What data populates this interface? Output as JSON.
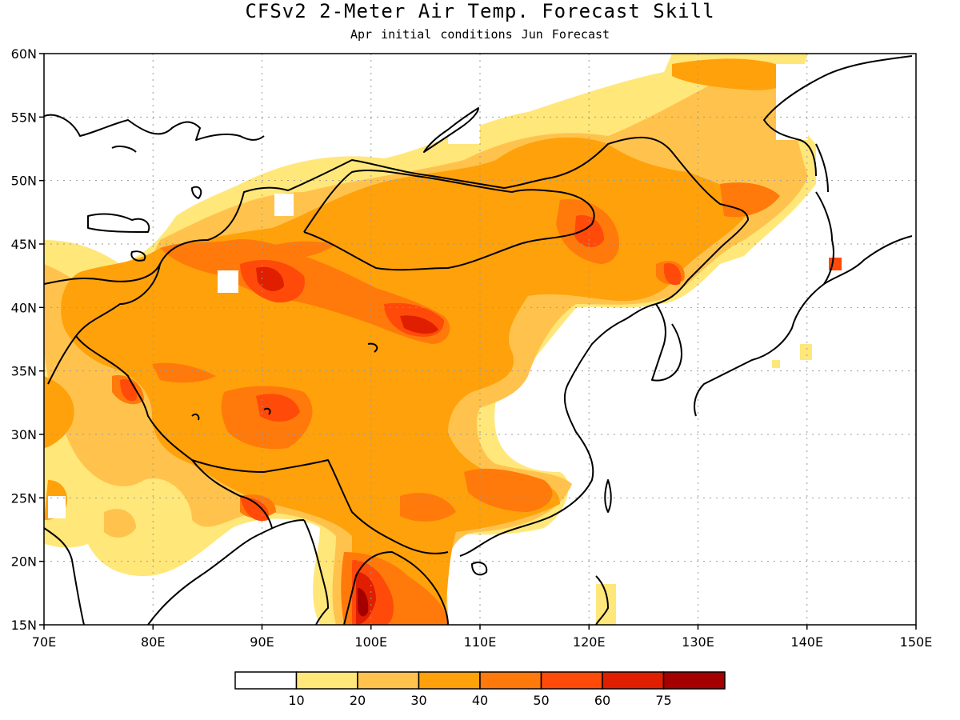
{
  "header": {
    "title": "CFSv2 2-Meter Air Temp. Forecast Skill",
    "subtitle": "Apr initial conditions  Jun Forecast"
  },
  "map": {
    "lon_range": [
      70,
      150
    ],
    "lat_range": [
      15,
      60
    ],
    "x_tick_labels": [
      "70E",
      "80E",
      "90E",
      "100E",
      "110E",
      "120E",
      "130E",
      "140E",
      "150E"
    ],
    "y_tick_labels": [
      "15N",
      "20N",
      "25N",
      "30N",
      "35N",
      "40N",
      "45N",
      "50N",
      "55N",
      "60N"
    ],
    "grid": "dotted",
    "colors": {
      "white": "#ffffff",
      "c10": "#ffe77a",
      "c20": "#ffc34d",
      "c30": "#ffa10a",
      "c40": "#ff7a0a",
      "c50": "#ff4a0a",
      "c60": "#e01e00",
      "c75": "#a50000",
      "coast": "#000000",
      "grid": "#9a9a9a"
    }
  },
  "legend": {
    "colors": [
      "#ffffff",
      "#ffe77a",
      "#ffc34d",
      "#ffa10a",
      "#ff7a0a",
      "#ff4a0a",
      "#e01e00",
      "#a50000"
    ],
    "labels": [
      "10",
      "20",
      "30",
      "40",
      "50",
      "60",
      "75"
    ]
  }
}
